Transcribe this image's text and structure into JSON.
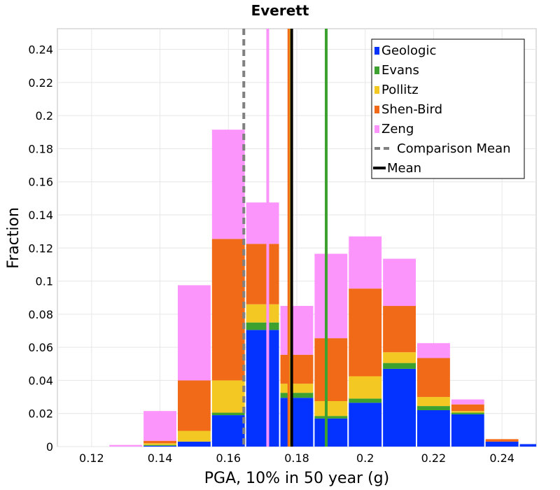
{
  "chart_data": {
    "type": "bar",
    "stacked": true,
    "title": "Everett",
    "xlabel": "PGA, 10% in 50 year (g)",
    "ylabel": "Fraction",
    "xlim": [
      0.11,
      0.25
    ],
    "ylim": [
      0,
      0.2525
    ],
    "xticks": [
      "0.12",
      "0.14",
      "0.16",
      "0.18",
      "0.2",
      "0.22",
      "0.24"
    ],
    "yticks": [
      "0",
      "0.02",
      "0.04",
      "0.06",
      "0.08",
      "0.1",
      "0.12",
      "0.14",
      "0.16",
      "0.18",
      "0.2",
      "0.22",
      "0.24"
    ],
    "grid": true,
    "legend_position": "top-right",
    "bin_width": 0.01,
    "x": [
      0.12,
      0.13,
      0.14,
      0.15,
      0.16,
      0.17,
      0.18,
      0.19,
      0.2,
      0.21,
      0.22,
      0.23,
      0.24
    ],
    "series": [
      {
        "name": "Geologic",
        "color": "#0433ff",
        "values": [
          0,
          0,
          0.0005,
          0.003,
          0.019,
          0.0705,
          0.0295,
          0.017,
          0.0265,
          0.047,
          0.022,
          0.0195,
          0.003
        ]
      },
      {
        "name": "Evans",
        "color": "#3ca12e",
        "values": [
          0,
          0,
          0.0005,
          0,
          0.0015,
          0.0045,
          0.003,
          0.0015,
          0.0025,
          0.0035,
          0.0025,
          0.001,
          0
        ]
      },
      {
        "name": "Pollitz",
        "color": "#f4c822",
        "values": [
          0,
          0,
          0.001,
          0.0065,
          0.0195,
          0.011,
          0.0055,
          0.009,
          0.0135,
          0.0065,
          0.0055,
          0.001,
          0
        ]
      },
      {
        "name": "Shen-Bird",
        "color": "#f06a18",
        "values": [
          0,
          0,
          0.0015,
          0.0305,
          0.0855,
          0.0365,
          0.0175,
          0.038,
          0.053,
          0.028,
          0.0235,
          0.004,
          0.0015
        ]
      },
      {
        "name": "Zeng",
        "color": "#fb94fb",
        "values": [
          0,
          0.001,
          0.018,
          0.0575,
          0.066,
          0.025,
          0.0295,
          0.051,
          0.0315,
          0.0285,
          0.009,
          0.003,
          0
        ]
      }
    ],
    "extra_bins": [
      {
        "x": 0.25,
        "series": "Geologic",
        "value": 0.0015
      }
    ],
    "vlines": [
      {
        "name": "Zeng",
        "x": 0.1715,
        "color": "#fb94fb",
        "style": "solid"
      },
      {
        "name": "Shen-Bird",
        "x": 0.1777,
        "color": "#f06a18",
        "style": "solid"
      },
      {
        "name": "Pollitz",
        "x": 0.1783,
        "color": "#f4c822",
        "style": "solid"
      },
      {
        "name": "Evans",
        "x": 0.1886,
        "color": "#3ca12e",
        "style": "solid"
      },
      {
        "name": "Comparison Mean",
        "x": 0.1645,
        "color": "#808080",
        "style": "dashed"
      },
      {
        "name": "Mean",
        "x": 0.1785,
        "color": "#000000",
        "style": "solid"
      }
    ],
    "legend": [
      {
        "label": "Geologic",
        "color": "#0433ff",
        "kind": "box"
      },
      {
        "label": "Evans",
        "color": "#3ca12e",
        "kind": "box"
      },
      {
        "label": "Pollitz",
        "color": "#f4c822",
        "kind": "box"
      },
      {
        "label": "Shen-Bird",
        "color": "#f06a18",
        "kind": "box"
      },
      {
        "label": "Zeng",
        "color": "#fb94fb",
        "kind": "box"
      },
      {
        "label": "Comparison Mean",
        "color": "#808080",
        "kind": "dashed"
      },
      {
        "label": "Mean",
        "color": "#000000",
        "kind": "solid"
      }
    ]
  }
}
